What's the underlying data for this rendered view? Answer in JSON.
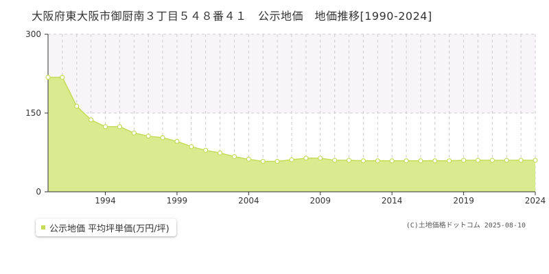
{
  "title": "大阪府東大阪市御厨南３丁目５４８番４１　公示地価　地価推移[1990-2024]",
  "legend": {
    "label": "公示地価 平均坪単価(万円/坪)"
  },
  "credit": "(C)土地価格ドットコム 2025-08-10",
  "colors": {
    "area": "#d9ea8f",
    "line": "#c5dc5a",
    "marker_fill": "#ffffff",
    "marker_stroke": "#c5dc5a",
    "band": "#f7f5f7"
  },
  "chart_data": {
    "type": "area",
    "title": "大阪府東大阪市御厨南３丁目５４８番４１　公示地価　地価推移[1990-2024]",
    "xlabel": "",
    "ylabel": "",
    "ylim": [
      0,
      300
    ],
    "yticks": [
      0,
      150,
      300
    ],
    "xticks": [
      1994,
      1999,
      2004,
      2009,
      2014,
      2019,
      2024
    ],
    "grid": true,
    "legend_position": "bottom-left",
    "series": [
      {
        "name": "公示地価 平均坪単価(万円/坪)",
        "x": [
          1990,
          1991,
          1992,
          1993,
          1994,
          1995,
          1996,
          1997,
          1998,
          1999,
          2000,
          2001,
          2002,
          2003,
          2004,
          2005,
          2006,
          2007,
          2008,
          2009,
          2010,
          2011,
          2012,
          2013,
          2014,
          2015,
          2016,
          2017,
          2018,
          2019,
          2020,
          2021,
          2022,
          2023,
          2024
        ],
        "values": [
          218,
          218,
          163,
          137,
          124,
          124,
          112,
          106,
          103,
          96,
          86,
          79,
          74,
          67,
          62,
          58,
          58,
          61,
          64,
          64,
          60,
          60,
          59,
          59,
          59,
          59,
          59,
          59,
          59,
          60,
          60,
          60,
          60,
          60,
          60
        ]
      }
    ]
  }
}
